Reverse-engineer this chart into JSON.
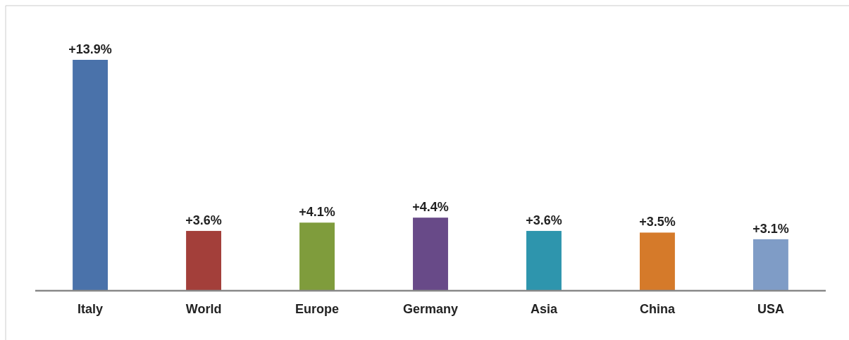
{
  "chart_data": {
    "type": "bar",
    "categories": [
      "Italy",
      "World",
      "Europe",
      "Germany",
      "Asia",
      "China",
      "USA"
    ],
    "values": [
      13.9,
      3.6,
      4.1,
      4.4,
      3.6,
      3.5,
      3.1
    ],
    "colors": [
      "#4a72aa",
      "#a33f3a",
      "#7f9c3c",
      "#684a88",
      "#2e95ad",
      "#d57a2a",
      "#7f9cc6"
    ],
    "value_labels": [
      "+13.9%",
      "+3.6%",
      "+4.1%",
      "+4.4%",
      "+3.6%",
      "+3.5%",
      "+3.1%"
    ]
  }
}
